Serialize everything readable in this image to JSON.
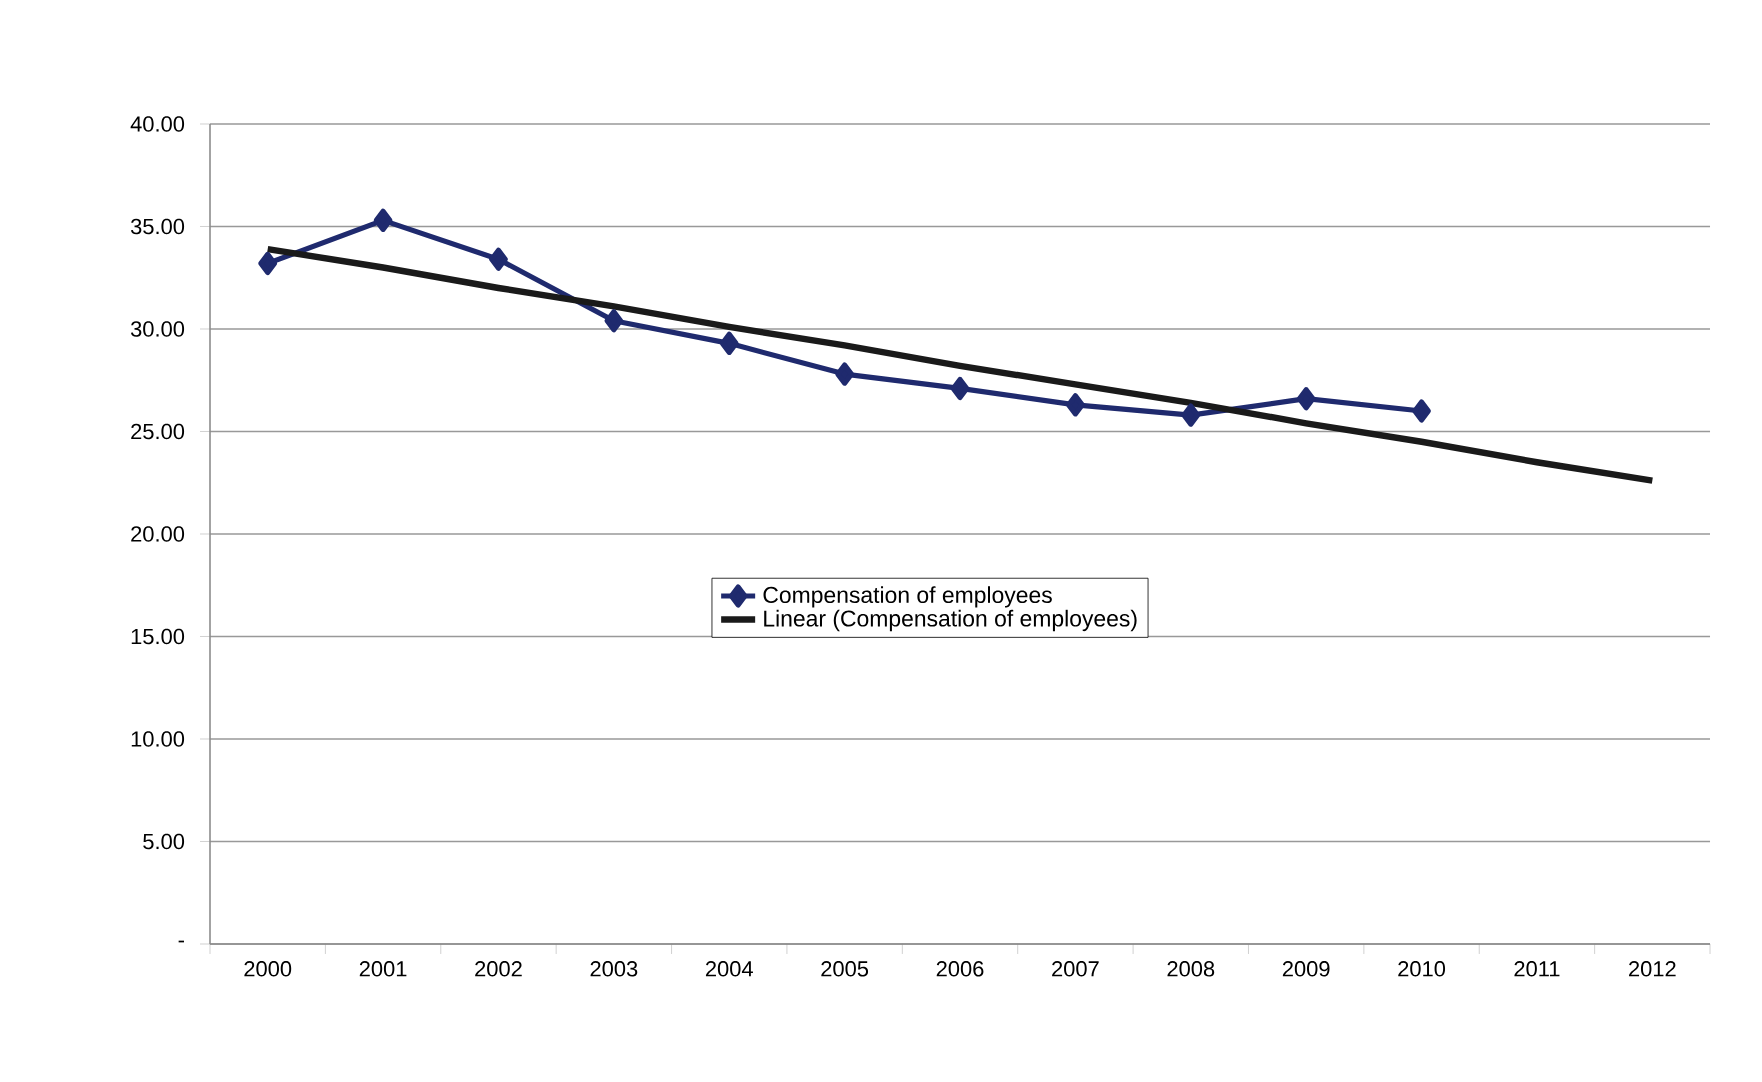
{
  "chart_data": {
    "type": "line",
    "categories": [
      "2000",
      "2001",
      "2002",
      "2003",
      "2004",
      "2005",
      "2006",
      "2007",
      "2008",
      "2009",
      "2010",
      "2011",
      "2012"
    ],
    "series": [
      {
        "name": "Compensation of employees",
        "color": "#1f2a6e",
        "marker": "diamond",
        "values": [
          33.2,
          35.3,
          33.4,
          30.4,
          29.3,
          27.8,
          27.1,
          26.3,
          25.8,
          26.6,
          26.0,
          null,
          null
        ]
      },
      {
        "name": "Linear (Compensation of employees)",
        "color": "#1a1a1a",
        "marker": "none",
        "values": [
          33.9,
          33.0,
          32.0,
          31.1,
          30.1,
          29.2,
          28.2,
          27.3,
          26.4,
          25.4,
          24.5,
          23.5,
          22.6
        ]
      }
    ],
    "ylim": [
      0,
      40
    ],
    "yticks": [
      {
        "value": 0,
        "label": "-"
      },
      {
        "value": 5,
        "label": "5.00"
      },
      {
        "value": 10,
        "label": "10.00"
      },
      {
        "value": 15,
        "label": "15.00"
      },
      {
        "value": 20,
        "label": "20.00"
      },
      {
        "value": 25,
        "label": "25.00"
      },
      {
        "value": 30,
        "label": "30.00"
      },
      {
        "value": 35,
        "label": "35.00"
      },
      {
        "value": 40,
        "label": "40.00"
      }
    ],
    "grid": "y",
    "legend": "center"
  }
}
